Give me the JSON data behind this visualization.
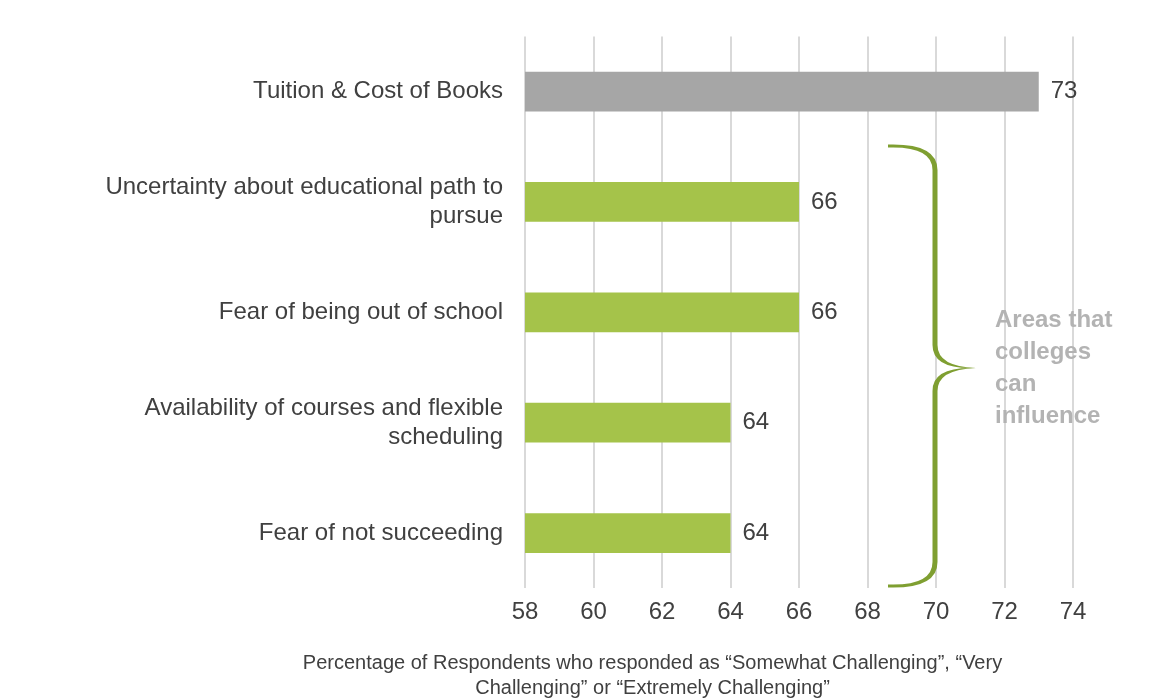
{
  "chart_data": {
    "type": "bar",
    "orientation": "horizontal",
    "categories": [
      "Tuition & Cost of Books",
      "Uncertainty about educational path to pursue",
      "Fear of being out of school",
      "Availability of courses and flexible scheduling",
      "Fear of not succeeding"
    ],
    "values": [
      73,
      66,
      66,
      64,
      64
    ],
    "colors": [
      "#a6a6a6",
      "#a5c34a",
      "#a5c34a",
      "#a5c34a",
      "#a5c34a"
    ],
    "xlim": [
      58,
      74
    ],
    "xticks": [
      58,
      60,
      62,
      64,
      66,
      68,
      70,
      72,
      74
    ],
    "xlabel": "Percentage of Respondents who responded as “Somewhat Challenging”, “Very Challenging” or “Extremely Challenging”",
    "annotations": [
      "Areas that colleges can influence"
    ],
    "data_labels": true,
    "grid": "x",
    "legend": false
  }
}
